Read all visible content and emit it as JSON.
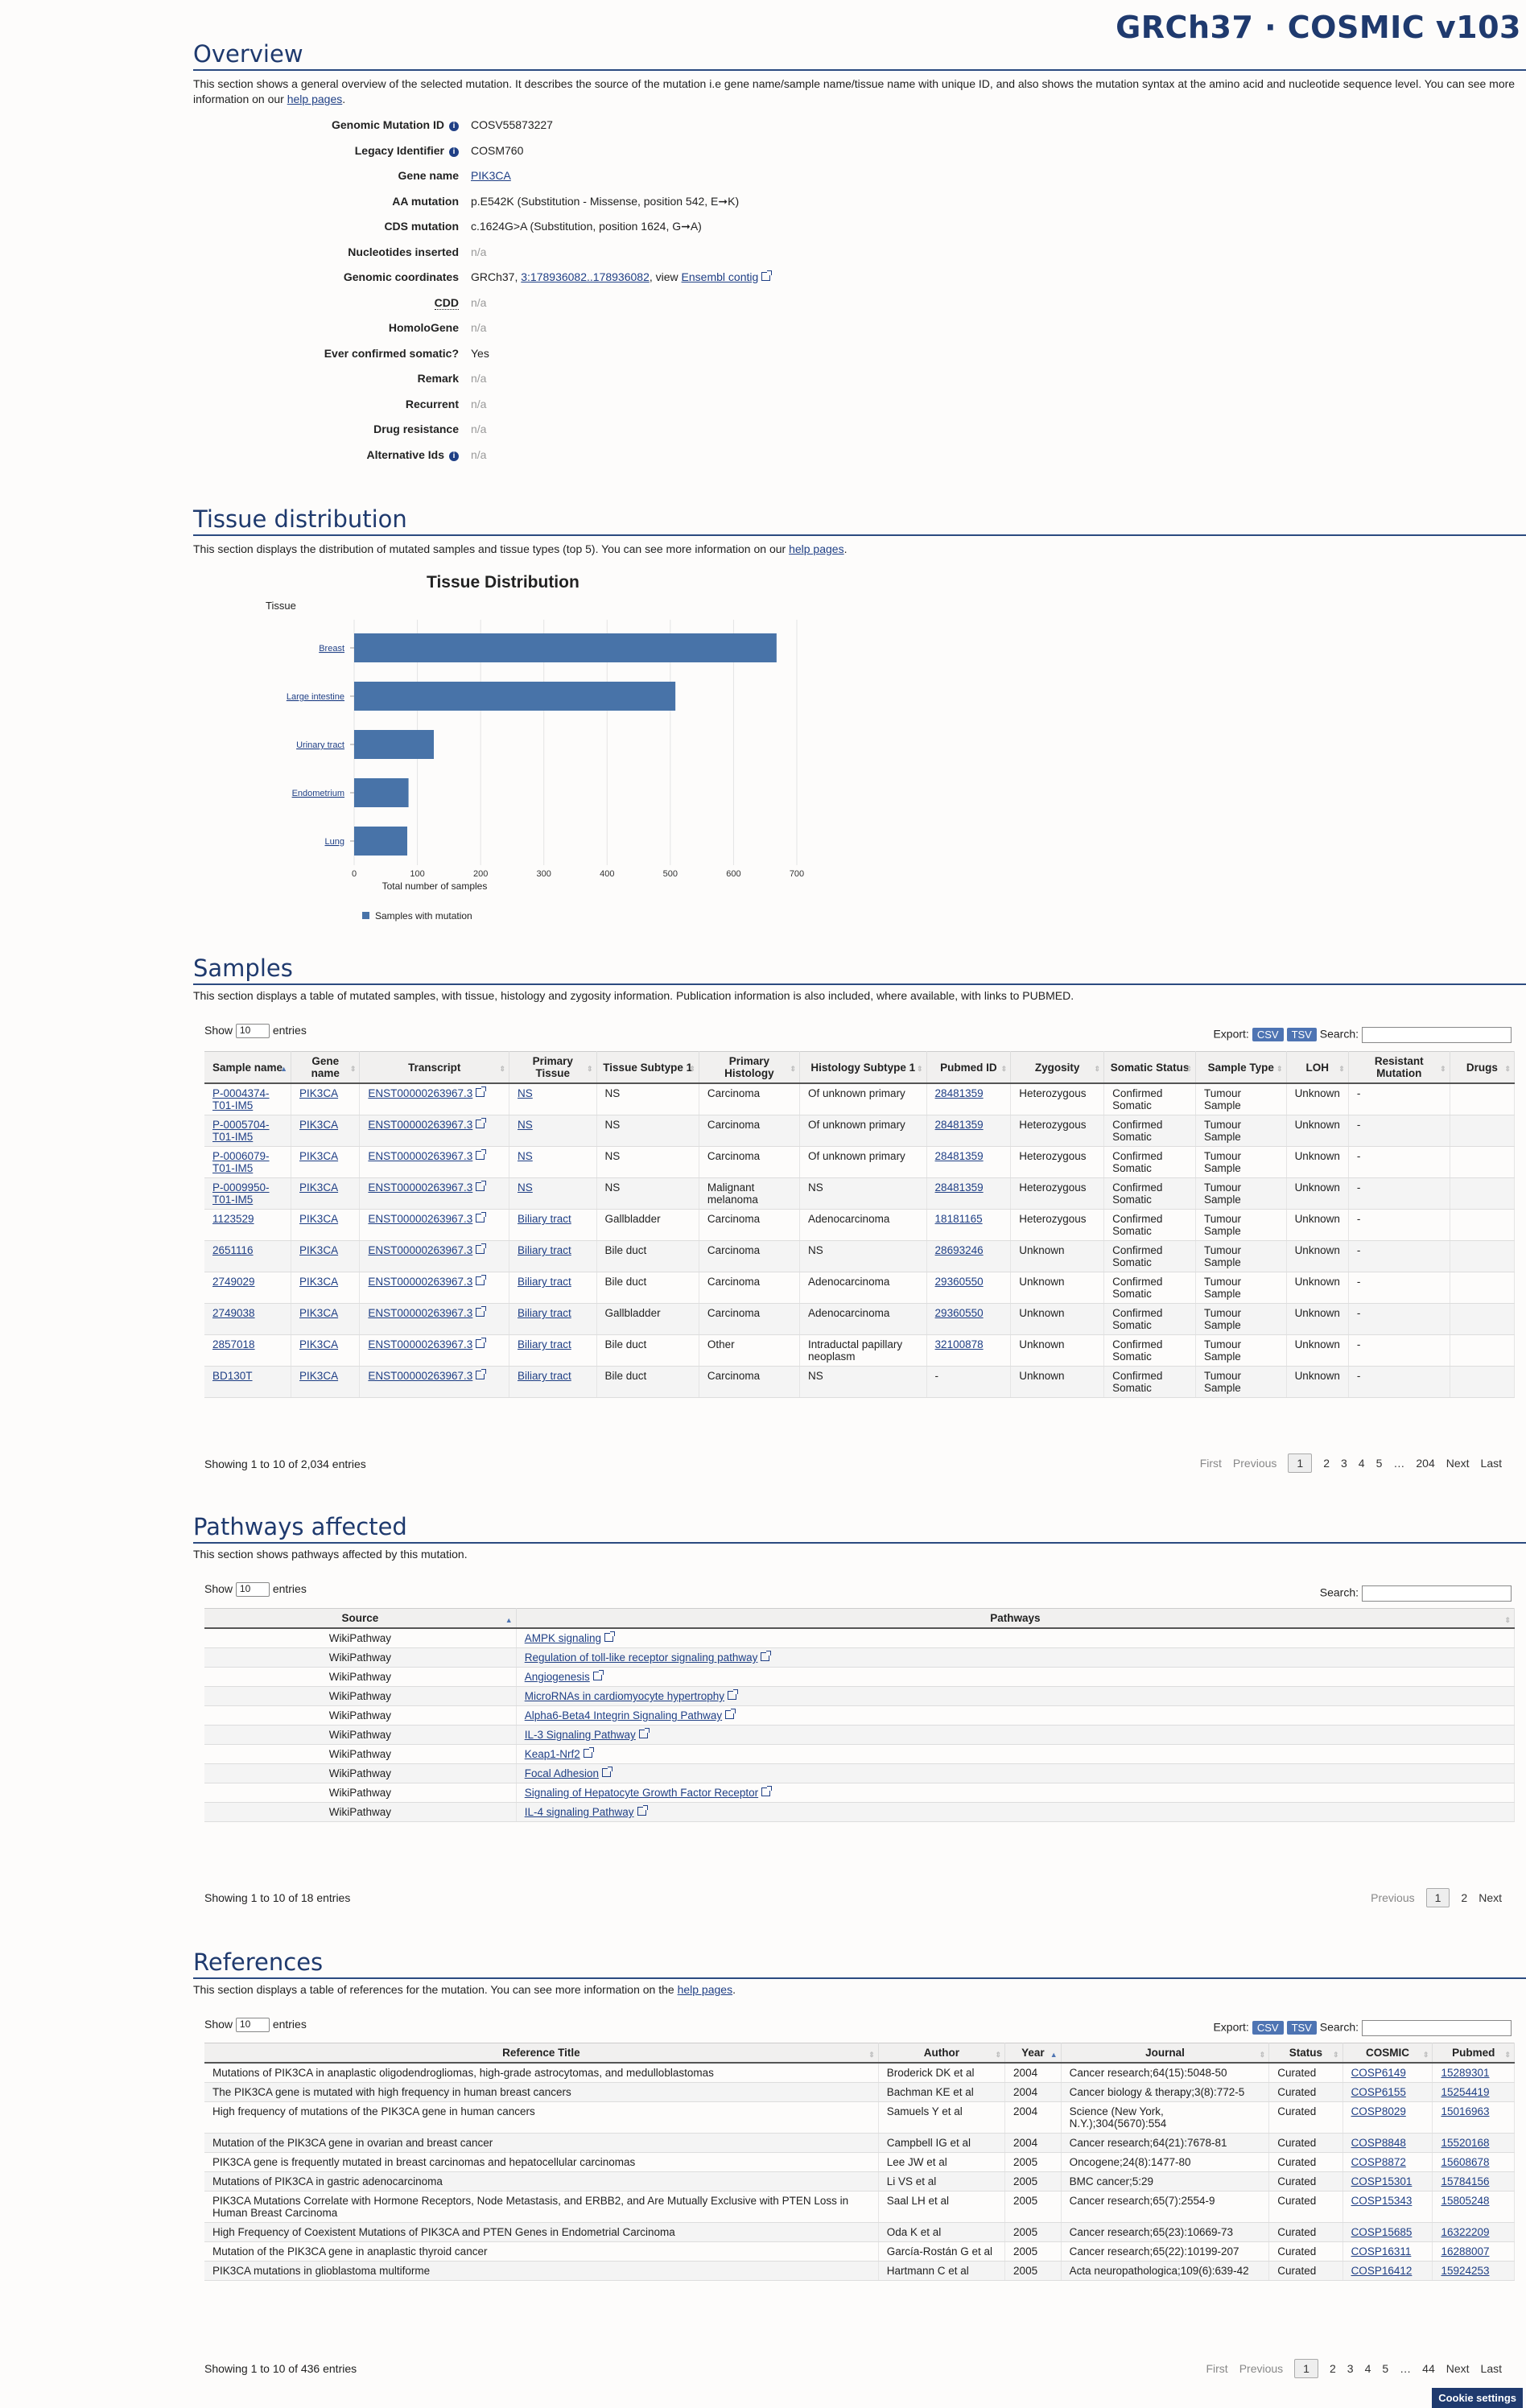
{
  "brand": "GRCh37 · COSMIC v103",
  "overview": {
    "heading": "Overview",
    "description": "This section shows a general overview of the selected mutation. It describes the source of the mutation i.e gene name/sample name/tissue name with unique ID, and also shows the mutation syntax at the amino acid and nucleotide sequence level. You can see more information on our",
    "description_link": "help pages",
    "rows": [
      {
        "label": "Genomic Mutation ID",
        "value": "COSV55873227"
      },
      {
        "label": "Legacy Identifier",
        "value": "COSM760"
      },
      {
        "label": "Gene name",
        "value": "PIK3CA"
      },
      {
        "label": "AA mutation",
        "value": "p.E542K (Substitution - Missense, position 542, E➞K)"
      },
      {
        "label": "CDS mutation",
        "value": "c.1624G>A (Substitution, position 1624, G➞A)"
      },
      {
        "label": "Nucleotides inserted",
        "value": "n/a"
      },
      {
        "label": "Genomic coordinates",
        "value_prefix": "GRCh37,",
        "value_link": "3:178936082..178936082",
        "value_mid": ", view",
        "value_link2": "Ensembl contig"
      },
      {
        "label": "CDD",
        "value": "n/a"
      },
      {
        "label": "HomoloGene",
        "value": "n/a"
      },
      {
        "label": "Ever confirmed somatic?",
        "value": "Yes"
      },
      {
        "label": "Remark",
        "value": "n/a"
      },
      {
        "label": "Recurrent",
        "value": "n/a"
      },
      {
        "label": "Drug resistance",
        "value": "n/a"
      },
      {
        "label": "Alternative Ids",
        "value": "n/a"
      }
    ]
  },
  "tissue": {
    "heading": "Tissue distribution",
    "description": "This section displays the distribution of mutated samples and tissue types (top 5). You can see more information on our",
    "description_link": "help pages"
  },
  "chart_data": {
    "type": "bar",
    "orientation": "horizontal",
    "title": "Tissue Distribution",
    "ylabel": "Tissue",
    "xlabel": "Total number of samples",
    "categories": [
      "Breast",
      "Large intestine",
      "Urinary tract",
      "Endometrium",
      "Lung"
    ],
    "series": [
      {
        "name": "Samples with mutation",
        "values": [
          668,
          508,
          126,
          86,
          84
        ]
      }
    ],
    "xlim": [
      0,
      700
    ],
    "xticks": [
      0,
      100,
      200,
      300,
      400,
      500,
      600,
      700
    ],
    "legend": "bottom-left",
    "bar_color": "#4873a8"
  },
  "samples": {
    "heading": "Samples",
    "description": "This section displays a table of mutated samples, with tissue, histology and zygosity information. Publication information is also included, where available, with links to PUBMED.",
    "show": "Show",
    "entries": "entries",
    "page_size": "10",
    "export": "Export:",
    "csv": "CSV",
    "tsv": "TSV",
    "search": "Search:",
    "columns": [
      "Sample name",
      "Gene name",
      "Transcript",
      "Primary Tissue",
      "Tissue Subtype 1",
      "Primary Histology",
      "Histology Subtype 1",
      "Pubmed ID",
      "Zygosity",
      "Somatic Status",
      "Sample Type",
      "LOH",
      "Resistant Mutation",
      "Drugs"
    ],
    "rows": [
      [
        "P-0004374-T01-IM5",
        "PIK3CA",
        "ENST00000263967.3",
        "NS",
        "NS",
        "Carcinoma",
        "Of unknown primary",
        "28481359",
        "Heterozygous",
        "Confirmed Somatic",
        "Tumour Sample",
        "Unknown",
        "-",
        ""
      ],
      [
        "P-0005704-T01-IM5",
        "PIK3CA",
        "ENST00000263967.3",
        "NS",
        "NS",
        "Carcinoma",
        "Of unknown primary",
        "28481359",
        "Heterozygous",
        "Confirmed Somatic",
        "Tumour Sample",
        "Unknown",
        "-",
        ""
      ],
      [
        "P-0006079-T01-IM5",
        "PIK3CA",
        "ENST00000263967.3",
        "NS",
        "NS",
        "Carcinoma",
        "Of unknown primary",
        "28481359",
        "Heterozygous",
        "Confirmed Somatic",
        "Tumour Sample",
        "Unknown",
        "-",
        ""
      ],
      [
        "P-0009950-T01-IM5",
        "PIK3CA",
        "ENST00000263967.3",
        "NS",
        "NS",
        "Malignant melanoma",
        "NS",
        "28481359",
        "Heterozygous",
        "Confirmed Somatic",
        "Tumour Sample",
        "Unknown",
        "-",
        ""
      ],
      [
        "1123529",
        "PIK3CA",
        "ENST00000263967.3",
        "Biliary tract",
        "Gallbladder",
        "Carcinoma",
        "Adenocarcinoma",
        "18181165",
        "Heterozygous",
        "Confirmed Somatic",
        "Tumour Sample",
        "Unknown",
        "-",
        ""
      ],
      [
        "2651116",
        "PIK3CA",
        "ENST00000263967.3",
        "Biliary tract",
        "Bile duct",
        "Carcinoma",
        "NS",
        "28693246",
        "Unknown",
        "Confirmed Somatic",
        "Tumour Sample",
        "Unknown",
        "-",
        ""
      ],
      [
        "2749029",
        "PIK3CA",
        "ENST00000263967.3",
        "Biliary tract",
        "Bile duct",
        "Carcinoma",
        "Adenocarcinoma",
        "29360550",
        "Unknown",
        "Confirmed Somatic",
        "Tumour Sample",
        "Unknown",
        "-",
        ""
      ],
      [
        "2749038",
        "PIK3CA",
        "ENST00000263967.3",
        "Biliary tract",
        "Gallbladder",
        "Carcinoma",
        "Adenocarcinoma",
        "29360550",
        "Unknown",
        "Confirmed Somatic",
        "Tumour Sample",
        "Unknown",
        "-",
        ""
      ],
      [
        "2857018",
        "PIK3CA",
        "ENST00000263967.3",
        "Biliary tract",
        "Bile duct",
        "Other",
        "Intraductal papillary neoplasm",
        "32100878",
        "Unknown",
        "Confirmed Somatic",
        "Tumour Sample",
        "Unknown",
        "-",
        ""
      ],
      [
        "BD130T",
        "PIK3CA",
        "ENST00000263967.3",
        "Biliary tract",
        "Bile duct",
        "Carcinoma",
        "NS",
        "-",
        "Unknown",
        "Confirmed Somatic",
        "Tumour Sample",
        "Unknown",
        "-",
        ""
      ]
    ],
    "info": "Showing 1 to 10 of 2,034 entries",
    "pager": [
      "First",
      "Previous",
      "1",
      "2",
      "3",
      "4",
      "5",
      "…",
      "204",
      "Next",
      "Last"
    ]
  },
  "pathways": {
    "heading": "Pathways affected",
    "description": "This section shows pathways affected by this mutation.",
    "show": "Show",
    "entries": "entries",
    "page_size": "10",
    "search": "Search:",
    "columns": [
      "Source",
      "Pathways"
    ],
    "rows": [
      [
        "WikiPathway",
        "AMPK signaling"
      ],
      [
        "WikiPathway",
        "Regulation of toll-like receptor signaling pathway"
      ],
      [
        "WikiPathway",
        "Angiogenesis"
      ],
      [
        "WikiPathway",
        "MicroRNAs in cardiomyocyte hypertrophy"
      ],
      [
        "WikiPathway",
        "Alpha6-Beta4 Integrin Signaling Pathway"
      ],
      [
        "WikiPathway",
        "IL-3 Signaling Pathway"
      ],
      [
        "WikiPathway",
        "Keap1-Nrf2"
      ],
      [
        "WikiPathway",
        "Focal Adhesion"
      ],
      [
        "WikiPathway",
        "Signaling of Hepatocyte Growth Factor Receptor"
      ],
      [
        "WikiPathway",
        "IL-4 signaling Pathway"
      ]
    ],
    "info": "Showing 1 to 10 of 18 entries",
    "pager": [
      "Previous",
      "1",
      "2",
      "Next"
    ]
  },
  "references": {
    "heading": "References",
    "description": "This section displays a table of references for the mutation. You can see more information on the",
    "description_link": "help pages",
    "show": "Show",
    "entries": "entries",
    "page_size": "10",
    "export": "Export:",
    "csv": "CSV",
    "tsv": "TSV",
    "search": "Search:",
    "columns": [
      "Reference Title",
      "Author",
      "Year",
      "Journal",
      "Status",
      "COSMIC",
      "Pubmed"
    ],
    "rows": [
      [
        "Mutations of PIK3CA in anaplastic oligodendrogliomas, high-grade astrocytomas, and medulloblastomas",
        "Broderick DK et al",
        "2004",
        "Cancer research;64(15):5048-50",
        "Curated",
        "COSP6149",
        "15289301"
      ],
      [
        "The PIK3CA gene is mutated with high frequency in human breast cancers",
        "Bachman KE et al",
        "2004",
        "Cancer biology & therapy;3(8):772-5",
        "Curated",
        "COSP6155",
        "15254419"
      ],
      [
        "High frequency of mutations of the PIK3CA gene in human cancers",
        "Samuels Y et al",
        "2004",
        "Science (New York, N.Y.);304(5670):554",
        "Curated",
        "COSP8029",
        "15016963"
      ],
      [
        "Mutation of the PIK3CA gene in ovarian and breast cancer",
        "Campbell IG et al",
        "2004",
        "Cancer research;64(21):7678-81",
        "Curated",
        "COSP8848",
        "15520168"
      ],
      [
        "PIK3CA gene is frequently mutated in breast carcinomas and hepatocellular carcinomas",
        "Lee JW et al",
        "2005",
        "Oncogene;24(8):1477-80",
        "Curated",
        "COSP8872",
        "15608678"
      ],
      [
        "Mutations of PIK3CA in gastric adenocarcinoma",
        "Li VS et al",
        "2005",
        "BMC cancer;5:29",
        "Curated",
        "COSP15301",
        "15784156"
      ],
      [
        "PIK3CA Mutations Correlate with Hormone Receptors, Node Metastasis, and ERBB2, and Are Mutually Exclusive with PTEN Loss in Human Breast Carcinoma",
        "Saal LH et al",
        "2005",
        "Cancer research;65(7):2554-9",
        "Curated",
        "COSP15343",
        "15805248"
      ],
      [
        "High Frequency of Coexistent Mutations of PIK3CA and PTEN Genes in Endometrial Carcinoma",
        "Oda K et al",
        "2005",
        "Cancer research;65(23):10669-73",
        "Curated",
        "COSP15685",
        "16322209"
      ],
      [
        "Mutation of the PIK3CA gene in anaplastic thyroid cancer",
        "García-Rostán G et al",
        "2005",
        "Cancer research;65(22):10199-207",
        "Curated",
        "COSP16311",
        "16288007"
      ],
      [
        "PIK3CA mutations in glioblastoma multiforme",
        "Hartmann C et al",
        "2005",
        "Acta neuropathologica;109(6):639-42",
        "Curated",
        "COSP16412",
        "15924253"
      ]
    ],
    "info": "Showing 1 to 10 of 436 entries",
    "pager": [
      "First",
      "Previous",
      "1",
      "2",
      "3",
      "4",
      "5",
      "…",
      "44",
      "Next",
      "Last"
    ]
  },
  "cookie": "Cookie settings"
}
